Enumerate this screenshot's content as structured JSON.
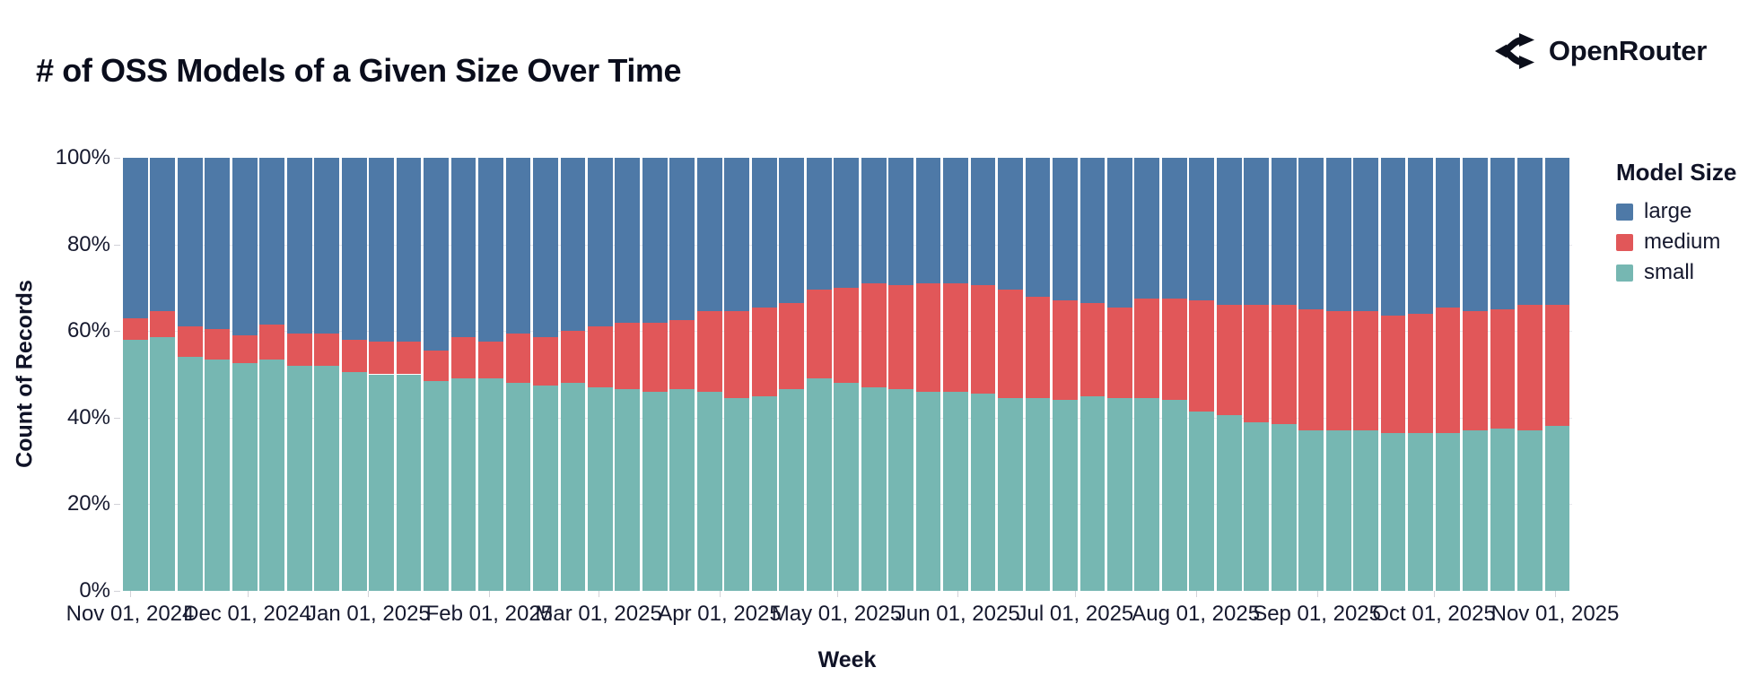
{
  "page": {
    "title": "# of OSS Models of a Given Size Over Time"
  },
  "brand": {
    "name": "OpenRouter",
    "icon": "openrouter-fork-arrows-icon",
    "color": "#0e1120"
  },
  "chart_data": {
    "type": "bar",
    "stacked": true,
    "normalized_percent": true,
    "title": "# of OSS Models of a Given Size Over Time",
    "xlabel": "Week",
    "ylabel": "Count of Records",
    "ylim": [
      0,
      100
    ],
    "grid": true,
    "y_ticks": [
      0,
      20,
      40,
      60,
      80,
      100
    ],
    "y_tick_suffix": "%",
    "x_ticks": [
      {
        "label": "Nov 01, 2024",
        "date": "2024-11-01"
      },
      {
        "label": "Dec 01, 2024",
        "date": "2024-12-01"
      },
      {
        "label": "Jan 01, 2025",
        "date": "2025-01-01"
      },
      {
        "label": "Feb 01, 2025",
        "date": "2025-02-01"
      },
      {
        "label": "Mar 01, 2025",
        "date": "2025-03-01"
      },
      {
        "label": "Apr 01, 2025",
        "date": "2025-04-01"
      },
      {
        "label": "May 01, 2025",
        "date": "2025-05-01"
      },
      {
        "label": "Jun 01, 2025",
        "date": "2025-06-01"
      },
      {
        "label": "Jul 01, 2025",
        "date": "2025-07-01"
      },
      {
        "label": "Aug 01, 2025",
        "date": "2025-08-01"
      },
      {
        "label": "Sep 01, 2025",
        "date": "2025-09-01"
      },
      {
        "label": "Oct 01, 2025",
        "date": "2025-10-01"
      },
      {
        "label": "Nov 01, 2025",
        "date": "2025-11-01"
      }
    ],
    "legend": {
      "title": "Model Size",
      "position": "right",
      "entries": [
        {
          "label": "large",
          "color": "#4e79a7"
        },
        {
          "label": "medium",
          "color": "#e15759"
        },
        {
          "label": "small",
          "color": "#76b7b2"
        }
      ]
    },
    "stack_order_bottom_to_top": [
      "small",
      "medium",
      "large"
    ],
    "weeks": [
      {
        "date": "2024-10-27",
        "small": 58,
        "medium": 5,
        "large": 37
      },
      {
        "date": "2024-11-03",
        "small": 58.5,
        "medium": 6,
        "large": 35.5
      },
      {
        "date": "2024-11-10",
        "small": 54,
        "medium": 7,
        "large": 39
      },
      {
        "date": "2024-11-17",
        "small": 53.5,
        "medium": 7,
        "large": 39.5
      },
      {
        "date": "2024-11-24",
        "small": 52.5,
        "medium": 6.5,
        "large": 41
      },
      {
        "date": "2024-12-01",
        "small": 53.5,
        "medium": 8,
        "large": 38.5
      },
      {
        "date": "2024-12-08",
        "small": 52,
        "medium": 7.5,
        "large": 40.5
      },
      {
        "date": "2024-12-15",
        "small": 52,
        "medium": 7.5,
        "large": 40.5
      },
      {
        "date": "2024-12-22",
        "small": 50.5,
        "medium": 7.5,
        "large": 42
      },
      {
        "date": "2024-12-29",
        "small": 50,
        "medium": 7.5,
        "large": 42.5
      },
      {
        "date": "2025-01-05",
        "small": 50,
        "medium": 7.5,
        "large": 42.5
      },
      {
        "date": "2025-01-12",
        "small": 48.5,
        "medium": 7,
        "large": 44.5
      },
      {
        "date": "2025-01-19",
        "small": 49,
        "medium": 9.5,
        "large": 41.5
      },
      {
        "date": "2025-01-26",
        "small": 49,
        "medium": 8.5,
        "large": 42.5
      },
      {
        "date": "2025-02-02",
        "small": 48,
        "medium": 11.5,
        "large": 40.5
      },
      {
        "date": "2025-02-09",
        "small": 47.5,
        "medium": 11,
        "large": 41.5
      },
      {
        "date": "2025-02-16",
        "small": 48,
        "medium": 12,
        "large": 40
      },
      {
        "date": "2025-02-23",
        "small": 47,
        "medium": 14,
        "large": 39
      },
      {
        "date": "2025-03-02",
        "small": 46.5,
        "medium": 15.5,
        "large": 38
      },
      {
        "date": "2025-03-09",
        "small": 46,
        "medium": 16,
        "large": 38
      },
      {
        "date": "2025-03-16",
        "small": 46.5,
        "medium": 16,
        "large": 37.5
      },
      {
        "date": "2025-03-23",
        "small": 46,
        "medium": 18.5,
        "large": 35.5
      },
      {
        "date": "2025-03-30",
        "small": 44.5,
        "medium": 20,
        "large": 35.5
      },
      {
        "date": "2025-04-06",
        "small": 45,
        "medium": 20.5,
        "large": 34.5
      },
      {
        "date": "2025-04-13",
        "small": 46.5,
        "medium": 20,
        "large": 33.5
      },
      {
        "date": "2025-04-20",
        "small": 49,
        "medium": 20.5,
        "large": 30.5
      },
      {
        "date": "2025-04-27",
        "small": 48,
        "medium": 22,
        "large": 30
      },
      {
        "date": "2025-05-04",
        "small": 47,
        "medium": 24,
        "large": 29
      },
      {
        "date": "2025-05-11",
        "small": 46.5,
        "medium": 24,
        "large": 29.5
      },
      {
        "date": "2025-05-18",
        "small": 46,
        "medium": 25,
        "large": 29
      },
      {
        "date": "2025-05-25",
        "small": 46,
        "medium": 25,
        "large": 29
      },
      {
        "date": "2025-06-01",
        "small": 45.5,
        "medium": 25,
        "large": 29.5
      },
      {
        "date": "2025-06-08",
        "small": 44.5,
        "medium": 25,
        "large": 30.5
      },
      {
        "date": "2025-06-15",
        "small": 44.5,
        "medium": 23.5,
        "large": 32
      },
      {
        "date": "2025-06-22",
        "small": 44,
        "medium": 23,
        "large": 33
      },
      {
        "date": "2025-06-29",
        "small": 45,
        "medium": 21.5,
        "large": 33.5
      },
      {
        "date": "2025-07-06",
        "small": 44.5,
        "medium": 21,
        "large": 34.5
      },
      {
        "date": "2025-07-13",
        "small": 44.5,
        "medium": 23,
        "large": 32.5
      },
      {
        "date": "2025-07-20",
        "small": 44,
        "medium": 23.5,
        "large": 32.5
      },
      {
        "date": "2025-07-27",
        "small": 41.5,
        "medium": 25.5,
        "large": 33
      },
      {
        "date": "2025-08-03",
        "small": 40.5,
        "medium": 25.5,
        "large": 34
      },
      {
        "date": "2025-08-10",
        "small": 39,
        "medium": 27,
        "large": 34
      },
      {
        "date": "2025-08-17",
        "small": 38.5,
        "medium": 27.5,
        "large": 34
      },
      {
        "date": "2025-08-24",
        "small": 37,
        "medium": 28,
        "large": 35
      },
      {
        "date": "2025-08-31",
        "small": 37,
        "medium": 27.5,
        "large": 35.5
      },
      {
        "date": "2025-09-07",
        "small": 37,
        "medium": 27.5,
        "large": 35.5
      },
      {
        "date": "2025-09-14",
        "small": 36.5,
        "medium": 27,
        "large": 36.5
      },
      {
        "date": "2025-09-21",
        "small": 36.5,
        "medium": 27.5,
        "large": 36
      },
      {
        "date": "2025-09-28",
        "small": 36.5,
        "medium": 29,
        "large": 34.5
      },
      {
        "date": "2025-10-05",
        "small": 37,
        "medium": 27.5,
        "large": 35.5
      },
      {
        "date": "2025-10-12",
        "small": 37.5,
        "medium": 27.5,
        "large": 35
      },
      {
        "date": "2025-10-19",
        "small": 37,
        "medium": 29,
        "large": 34
      },
      {
        "date": "2025-10-26",
        "small": 38,
        "medium": 28,
        "large": 34
      }
    ]
  }
}
